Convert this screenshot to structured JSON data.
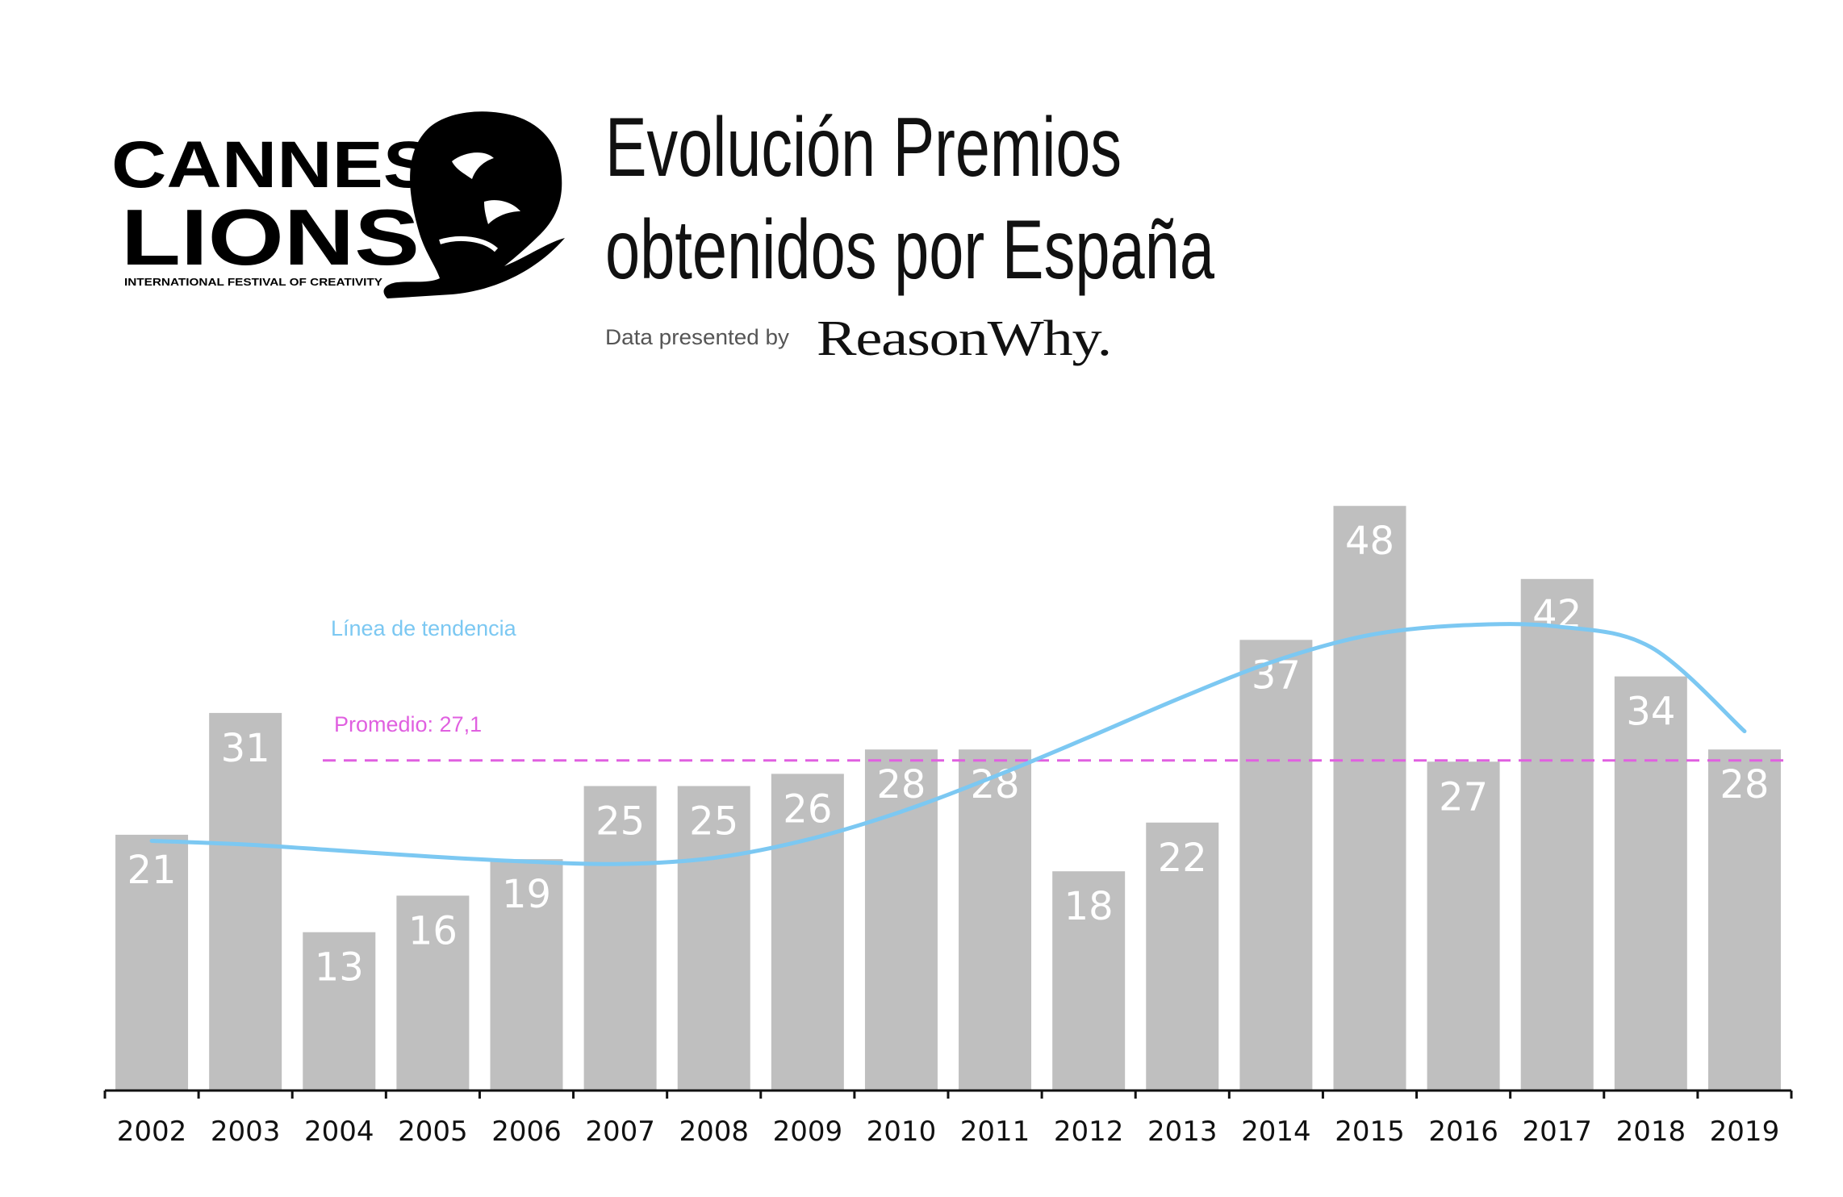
{
  "logo": {
    "line1": "CANNES",
    "line2": "LIONS",
    "tagline": "INTERNATIONAL FESTIVAL OF CREATIVITY",
    "icon": "lion-head-icon"
  },
  "title_line1": "Evolución Premios",
  "title_line2": "obtenidos por España",
  "presented_by": "Data presented by",
  "brand": "ReasonWhy.",
  "colors": {
    "bar": "#bfbfbf",
    "average": "#e060e0",
    "trend": "#7cc8f2",
    "axis": "#111111"
  },
  "chart_data": {
    "type": "bar",
    "title": "Evolución Premios obtenidos por España",
    "categories": [
      "2002",
      "2003",
      "2004",
      "2005",
      "2006",
      "2007",
      "2008",
      "2009",
      "2010",
      "2011",
      "2012",
      "2013",
      "2014",
      "2015",
      "2016",
      "2017",
      "2018",
      "2019"
    ],
    "values": [
      21,
      31,
      13,
      16,
      19,
      25,
      25,
      26,
      28,
      28,
      18,
      22,
      37,
      48,
      27,
      42,
      34,
      28
    ],
    "ylim": [
      0,
      55
    ],
    "grid": false,
    "data_labels": true,
    "average": {
      "label": "Promedio: 27,1",
      "value": 27.1
    },
    "trend": {
      "label": "Línea de tendencia",
      "values": [
        20.5,
        20.2,
        19.7,
        19.2,
        18.8,
        18.6,
        19.1,
        20.6,
        22.9,
        25.8,
        29.0,
        32.3,
        35.3,
        37.4,
        38.2,
        38.1,
        36.4,
        29.5
      ]
    }
  }
}
